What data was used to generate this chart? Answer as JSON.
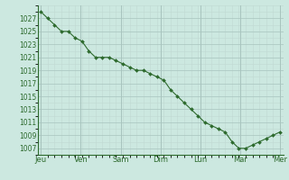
{
  "x_labels": [
    "Jeu",
    "Ven",
    "Sam",
    "Dim",
    "Lun",
    "Mar",
    "Mer"
  ],
  "y_values": [
    1028,
    1027,
    1026,
    1025,
    1025,
    1024,
    1023.5,
    1022,
    1021,
    1021,
    1021,
    1020.5,
    1020,
    1019.5,
    1019,
    1019,
    1018.5,
    1018,
    1017.5,
    1016,
    1015,
    1014,
    1013,
    1012,
    1011,
    1010.5,
    1010,
    1009.5,
    1008,
    1007,
    1007,
    1007.5,
    1008,
    1008.5,
    1009,
    1009.5
  ],
  "ylim": [
    1006,
    1029
  ],
  "yticks": [
    1007,
    1009,
    1011,
    1013,
    1015,
    1017,
    1019,
    1021,
    1023,
    1025,
    1027
  ],
  "line_color": "#2d6a2d",
  "marker_color": "#2d6a2d",
  "bg_color": "#cce8e0",
  "grid_color_minor": "#c0d8d2",
  "grid_color_major": "#a8c4be",
  "spine_color": "#2d6a2d",
  "tick_label_color": "#2d6a2d",
  "xlabel_color": "#2d6a2d",
  "n_points": 36,
  "days": 7
}
